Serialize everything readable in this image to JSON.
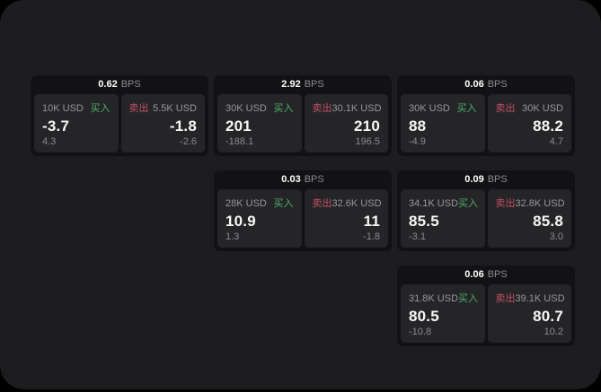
{
  "page": {
    "background_outer": "#000000",
    "background_board": "#1d1d1f"
  },
  "labels": {
    "bps": "BPS",
    "buy": "买入",
    "sell": "卖出"
  },
  "colors": {
    "buy_text": "#4fae68",
    "sell_text": "#c45066",
    "price_text": "#f7f7f7",
    "muted_text": "#8b8b90",
    "card_bg": "#121214",
    "panel_bg": "#252528"
  },
  "cards": [
    {
      "bps": "0.62",
      "row": 1,
      "col": 1,
      "buy": {
        "notional": "10K USD",
        "price": "-3.7",
        "delta": "4.3"
      },
      "sell": {
        "notional": "5.5K USD",
        "price": "-1.8",
        "delta": "-2.6"
      }
    },
    {
      "bps": "2.92",
      "row": 1,
      "col": 2,
      "buy": {
        "notional": "30K USD",
        "price": "201",
        "delta": "-188.1"
      },
      "sell": {
        "notional": "30.1K USD",
        "price": "210",
        "delta": "196.5"
      }
    },
    {
      "bps": "0.06",
      "row": 1,
      "col": 3,
      "buy": {
        "notional": "30K USD",
        "price": "88",
        "delta": "-4.9"
      },
      "sell": {
        "notional": "30K USD",
        "price": "88.2",
        "delta": "4.7"
      }
    },
    {
      "bps": "0.03",
      "row": 2,
      "col": 2,
      "buy": {
        "notional": "28K USD",
        "price": "10.9",
        "delta": "1.3"
      },
      "sell": {
        "notional": "32.6K USD",
        "price": "11",
        "delta": "-1.8"
      }
    },
    {
      "bps": "0.09",
      "row": 2,
      "col": 3,
      "buy": {
        "notional": "34.1K USD",
        "price": "85.5",
        "delta": "-3.1"
      },
      "sell": {
        "notional": "32.8K USD",
        "price": "85.8",
        "delta": "3.0"
      }
    },
    {
      "bps": "0.06",
      "row": 3,
      "col": 3,
      "buy": {
        "notional": "31.8K USD",
        "price": "80.5",
        "delta": "-10.8"
      },
      "sell": {
        "notional": "39.1K USD",
        "price": "80.7",
        "delta": "10.2"
      }
    }
  ]
}
